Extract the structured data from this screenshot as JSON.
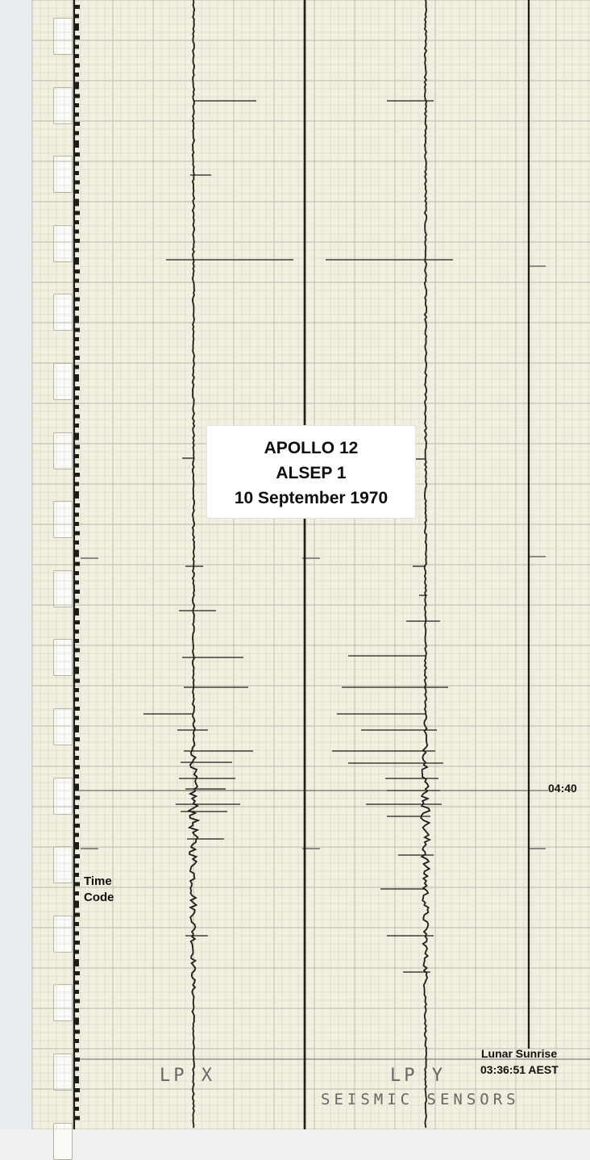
{
  "chart_data": {
    "type": "line",
    "title_box": {
      "line1": "APOLLO 12",
      "line2": "ALSEP  1",
      "line3": "10 September 1970"
    },
    "time_marker": "04:40",
    "time_code_label_line1": "Time",
    "time_code_label_line2": "Code",
    "sunrise_label_line1": "Lunar  Sunrise",
    "sunrise_label_line2": "03:36:51 AEST",
    "handwritten_lp_x": "LP  X",
    "handwritten_lp_y": "LP  Y",
    "handwritten_sensors": "SEISMIC  SENSORS",
    "series": [
      {
        "name": "LP X",
        "baseline": 0
      },
      {
        "name": "LP Y",
        "baseline": 0
      }
    ],
    "colors": {
      "paper": "#f3efdf",
      "grid_minor": "#cdd1c4",
      "grid_major": "#b5baad",
      "trace": "#1c1c1c"
    }
  }
}
